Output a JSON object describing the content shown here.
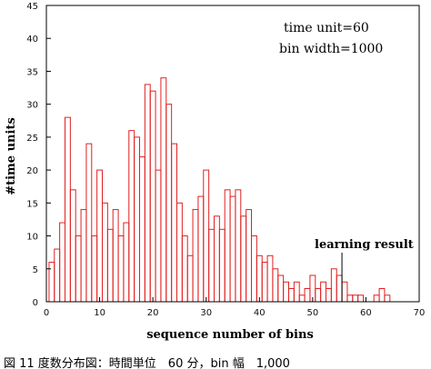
{
  "chart_data": {
    "type": "bar",
    "title": "",
    "xlabel": "sequence number of bins",
    "ylabel": "#time units",
    "xlim": [
      0,
      70
    ],
    "ylim": [
      0,
      45
    ],
    "xticks": [
      "0",
      "10",
      "20",
      "30",
      "40",
      "50",
      "60",
      "70"
    ],
    "yticks": [
      "0",
      "5",
      "10",
      "15",
      "20",
      "25",
      "30",
      "35",
      "40",
      "45"
    ],
    "grid": false,
    "bar_color": "#e02020",
    "x": [
      1,
      2,
      3,
      4,
      5,
      6,
      7,
      8,
      9,
      10,
      11,
      12,
      13,
      14,
      15,
      16,
      17,
      18,
      19,
      20,
      21,
      22,
      23,
      24,
      25,
      26,
      27,
      28,
      29,
      30,
      31,
      32,
      33,
      34,
      35,
      36,
      37,
      38,
      39,
      40,
      41,
      42,
      43,
      44,
      45,
      46,
      47,
      48,
      49,
      50,
      51,
      52,
      53,
      54,
      55,
      56,
      57,
      58,
      59,
      60,
      61,
      62,
      63,
      64
    ],
    "values": [
      6,
      8,
      12,
      28,
      17,
      10,
      14,
      24,
      10,
      20,
      15,
      11,
      14,
      10,
      12,
      26,
      25,
      22,
      33,
      32,
      20,
      34,
      30,
      24,
      15,
      10,
      7,
      14,
      16,
      20,
      11,
      13,
      11,
      17,
      16,
      17,
      13,
      14,
      10,
      7,
      6,
      7,
      5,
      4,
      3,
      2,
      3,
      1,
      2,
      4,
      2,
      3,
      2,
      5,
      4,
      3,
      1,
      1,
      1,
      0,
      0,
      1,
      2,
      1
    ],
    "annotations": {
      "params_line1": "time unit=60",
      "params_line2": "bin width=1000",
      "marker_label": "learning result",
      "marker_x": 55.5
    }
  },
  "caption": "図 11  度数分布図：時間単位　60 分，bin 幅　1,000"
}
